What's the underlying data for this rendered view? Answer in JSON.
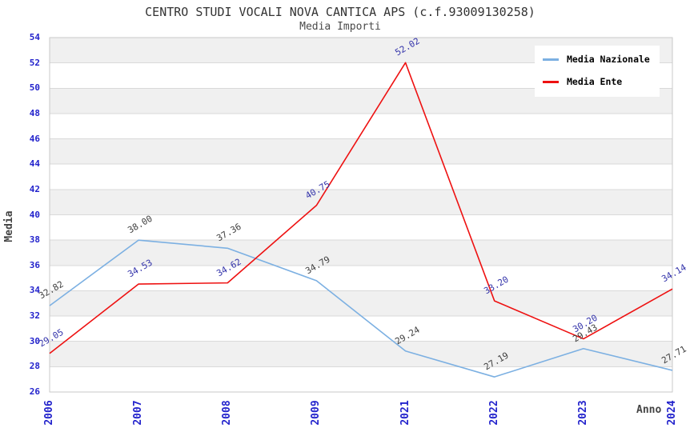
{
  "title": "CENTRO STUDI VOCALI NOVA CANTICA APS (c.f.93009130258)",
  "subtitle": "Media Importi",
  "axes": {
    "y_title": "Media",
    "x_title": "Anno",
    "tick_color": "#2323cc"
  },
  "chart_data": {
    "type": "line",
    "title": "CENTRO STUDI VOCALI NOVA CANTICA APS (c.f.93009130258)",
    "subtitle": "Media Importi",
    "xlabel": "Anno",
    "ylabel": "Media",
    "x": [
      "2006",
      "2007",
      "2008",
      "2009",
      "2021",
      "2022",
      "2023",
      "2024"
    ],
    "series": [
      {
        "name": "Media Nazionale",
        "color": "#7cb0e2",
        "label_color": "#404040",
        "values": [
          32.82,
          38.0,
          37.36,
          34.79,
          29.24,
          27.19,
          29.43,
          27.71
        ]
      },
      {
        "name": "Media Ente",
        "color": "#ee1111",
        "label_color": "#3333aa",
        "values": [
          29.05,
          34.53,
          34.62,
          40.75,
          52.02,
          33.2,
          30.2,
          34.14
        ]
      }
    ],
    "ylim": [
      26,
      54
    ],
    "ytick_step": 2,
    "yticks": [
      26,
      28,
      30,
      32,
      34,
      36,
      38,
      40,
      42,
      44,
      46,
      48,
      50,
      52,
      54
    ],
    "grid": "horizontal-bands",
    "band_color": "#f0f0f0",
    "gridline_color": "#d9d9d9",
    "border_color": "#c9c9c9",
    "legend_position": "top-right",
    "value_label_decimals": 2
  }
}
